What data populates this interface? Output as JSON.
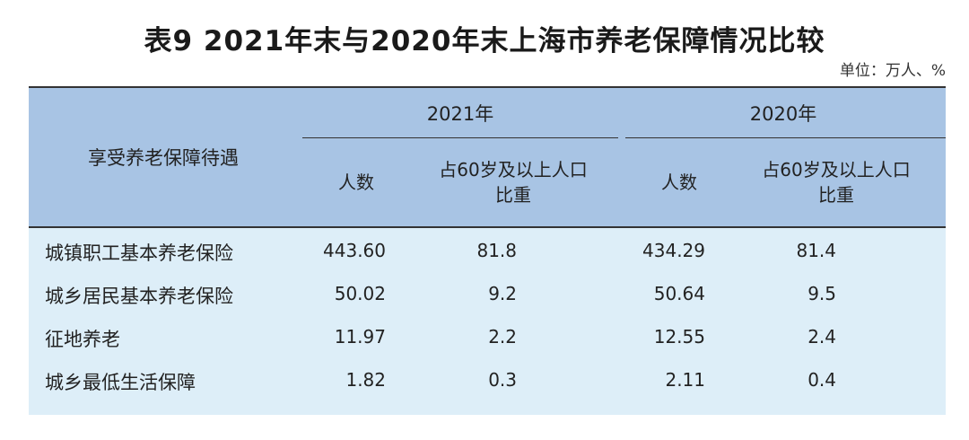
{
  "title": "表9  2021年末与2020年末上海市养老保障情况比较",
  "unit": "单位：万人、%",
  "table": {
    "row_header": "享受养老保障待遇",
    "years": [
      "2021年",
      "2020年"
    ],
    "sub_headers": [
      "人数",
      "占60岁及以上人口\n比重",
      "人数",
      "占60岁及以上人口\n比重"
    ],
    "rows": [
      {
        "label": "城镇职工基本养老保险",
        "values": [
          "443.60",
          "81.8",
          "434.29",
          "81.4"
        ]
      },
      {
        "label": "城乡居民基本养老保险",
        "values": [
          "50.02",
          "9.2",
          "50.64",
          "9.5"
        ]
      },
      {
        "label": "征地养老",
        "values": [
          "11.97",
          "2.2",
          "12.55",
          "2.4"
        ]
      },
      {
        "label": "城乡最低生活保障",
        "values": [
          "1.82",
          "0.3",
          "2.11",
          "0.4"
        ]
      }
    ]
  }
}
